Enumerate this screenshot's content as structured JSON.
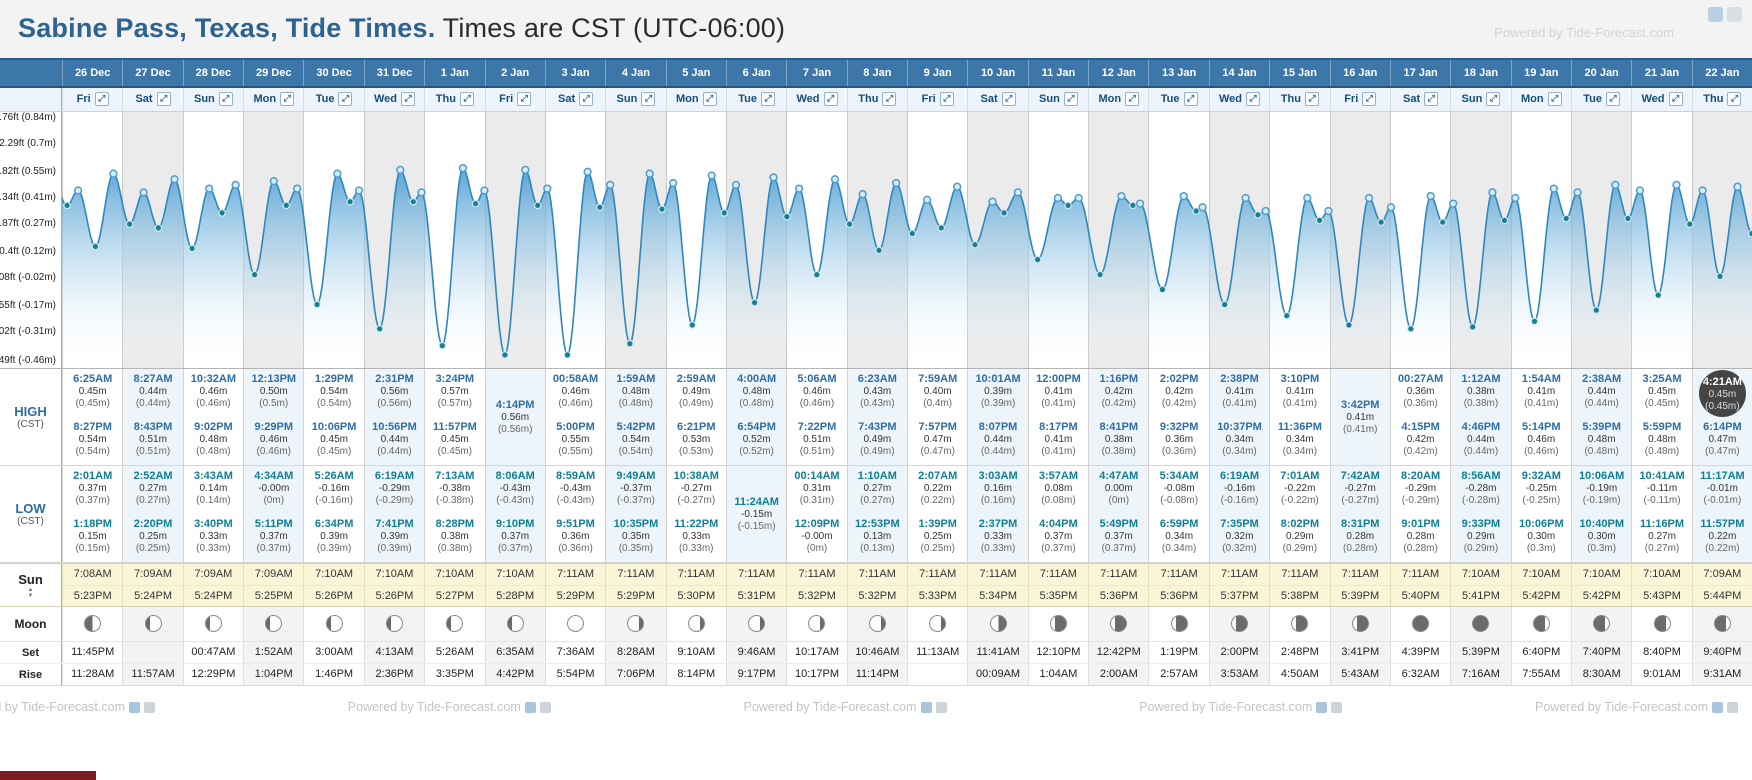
{
  "header": {
    "title_bold": "Sabine Pass, Texas, Tide Times.",
    "title_rest": " Times are CST (UTC-06:00)",
    "powered_by": "Powered by Tide-Forecast.com"
  },
  "row_labels": {
    "high": "HIGH",
    "high_unit": "(CST)",
    "low": "LOW",
    "low_unit": "(CST)",
    "sun": "Sun",
    "moon": "Moon",
    "moonset": "Set",
    "moonrise": "Rise"
  },
  "icons": {
    "expand": "⤢",
    "sun_up": "▲",
    "sun_down": "▼"
  },
  "colors": {
    "header_blue": "#3d76a8",
    "title_blue": "#2d6390",
    "high_time": "#2e6da4",
    "low_time": "#0e7f95",
    "sun_band": "#fbf5d8",
    "chart_line": "#3087bd"
  },
  "y_axis": [
    {
      "label": "2.76ft (0.84m)",
      "m": 0.84
    },
    {
      "label": "2.29ft (0.7m)",
      "m": 0.7
    },
    {
      "label": "1.82ft (0.55m)",
      "m": 0.55
    },
    {
      "label": "1.34ft (0.41m)",
      "m": 0.41
    },
    {
      "label": "0.87ft (0.27m)",
      "m": 0.27
    },
    {
      "label": "0.4ft (0.12m)",
      "m": 0.12
    },
    {
      "label": "-0.08ft (-0.02m)",
      "m": -0.02
    },
    {
      "label": "-0.55ft (-0.17m)",
      "m": -0.17
    },
    {
      "label": "-1.02ft (-0.31m)",
      "m": -0.31
    },
    {
      "label": "-1.49ft (-0.46m)",
      "m": -0.46
    }
  ],
  "chart_data": {
    "type": "area",
    "title": "Tide height curve",
    "unit": "m",
    "x_days": 28,
    "ylim_m": [
      -0.5,
      0.87
    ],
    "yticks": [
      "2.29ft (0.7m)",
      "1.82ft (0.55m)",
      "1.34ft (0.41m)",
      "0.87ft (0.27m)",
      "0.4ft (0.12m)",
      "-0.08ft (-0.02m)",
      "-0.55ft (-0.17m)",
      "-1.02ft (-0.31m)",
      "-1.49ft (-0.46m)"
    ],
    "series_note": "curve interpolates through every high/low tide event listed per day in days[].high and days[].low"
  },
  "footer": {
    "powered_by": "Powered by Tide-Forecast.com",
    "copies": 5
  },
  "days": [
    {
      "date": "26 Dec",
      "dow": "Fri",
      "high": [
        {
          "time": "6:25AM",
          "val": "0.45m",
          "alt": "(0.45m)"
        },
        {
          "time": "8:27PM",
          "val": "0.54m",
          "alt": "(0.54m)"
        }
      ],
      "low": [
        {
          "time": "2:01AM",
          "val": "0.37m",
          "alt": "(0.37m)"
        },
        {
          "time": "1:18PM",
          "val": "0.15m",
          "alt": "(0.15m)"
        }
      ],
      "sunrise": "7:08AM",
      "sunset": "5:23PM",
      "moon": "first-quarter",
      "set": "11:45PM",
      "rise": "11:28AM"
    },
    {
      "date": "27 Dec",
      "dow": "Sat",
      "high": [
        {
          "time": "8:27AM",
          "val": "0.44m",
          "alt": "(0.44m)"
        },
        {
          "time": "8:43PM",
          "val": "0.51m",
          "alt": "(0.51m)"
        }
      ],
      "low": [
        {
          "time": "2:52AM",
          "val": "0.27m",
          "alt": "(0.27m)"
        },
        {
          "time": "2:20PM",
          "val": "0.25m",
          "alt": "(0.25m)"
        }
      ],
      "sunrise": "7:09AM",
      "sunset": "5:24PM",
      "moon": "waxing-gibbous",
      "set": "",
      "rise": "11:57AM"
    },
    {
      "date": "28 Dec",
      "dow": "Sun",
      "high": [
        {
          "time": "10:32AM",
          "val": "0.46m",
          "alt": "(0.46m)"
        },
        {
          "time": "9:02PM",
          "val": "0.48m",
          "alt": "(0.48m)"
        }
      ],
      "low": [
        {
          "time": "3:43AM",
          "val": "0.14m",
          "alt": "(0.14m)"
        },
        {
          "time": "3:40PM",
          "val": "0.33m",
          "alt": "(0.33m)"
        }
      ],
      "sunrise": "7:09AM",
      "sunset": "5:24PM",
      "moon": "waxing-gibbous",
      "set": "00:47AM",
      "rise": "12:29PM"
    },
    {
      "date": "29 Dec",
      "dow": "Mon",
      "high": [
        {
          "time": "12:13PM",
          "val": "0.50m",
          "alt": "(0.5m)"
        },
        {
          "time": "9:29PM",
          "val": "0.46m",
          "alt": "(0.46m)"
        }
      ],
      "low": [
        {
          "time": "4:34AM",
          "val": "-0.00m",
          "alt": "(0m)"
        },
        {
          "time": "5:11PM",
          "val": "0.37m",
          "alt": "(0.37m)"
        }
      ],
      "sunrise": "7:09AM",
      "sunset": "5:25PM",
      "moon": "waxing-gibbous",
      "set": "1:52AM",
      "rise": "1:04PM"
    },
    {
      "date": "30 Dec",
      "dow": "Tue",
      "high": [
        {
          "time": "1:29PM",
          "val": "0.54m",
          "alt": "(0.54m)"
        },
        {
          "time": "10:06PM",
          "val": "0.45m",
          "alt": "(0.45m)"
        }
      ],
      "low": [
        {
          "time": "5:26AM",
          "val": "-0.16m",
          "alt": "(-0.16m)"
        },
        {
          "time": "6:34PM",
          "val": "0.39m",
          "alt": "(0.39m)"
        }
      ],
      "sunrise": "7:10AM",
      "sunset": "5:26PM",
      "moon": "waxing-gibbous",
      "set": "3:00AM",
      "rise": "1:46PM"
    },
    {
      "date": "31 Dec",
      "dow": "Wed",
      "high": [
        {
          "time": "2:31PM",
          "val": "0.56m",
          "alt": "(0.56m)"
        },
        {
          "time": "10:56PM",
          "val": "0.44m",
          "alt": "(0.44m)"
        }
      ],
      "low": [
        {
          "time": "6:19AM",
          "val": "-0.29m",
          "alt": "(-0.29m)"
        },
        {
          "time": "7:41PM",
          "val": "0.39m",
          "alt": "(0.39m)"
        }
      ],
      "sunrise": "7:10AM",
      "sunset": "5:26PM",
      "moon": "waxing-gibbous",
      "set": "4:13AM",
      "rise": "2:36PM"
    },
    {
      "date": "1 Jan",
      "dow": "Thu",
      "high": [
        {
          "time": "3:24PM",
          "val": "0.57m",
          "alt": "(0.57m)"
        },
        {
          "time": "11:57PM",
          "val": "0.45m",
          "alt": "(0.45m)"
        }
      ],
      "low": [
        {
          "time": "7:13AM",
          "val": "-0.38m",
          "alt": "(-0.38m)"
        },
        {
          "time": "8:28PM",
          "val": "0.38m",
          "alt": "(0.38m)"
        }
      ],
      "sunrise": "7:10AM",
      "sunset": "5:27PM",
      "moon": "waxing-gibbous",
      "set": "5:26AM",
      "rise": "3:35PM"
    },
    {
      "date": "2 Jan",
      "dow": "Fri",
      "high": [
        {
          "time": "4:14PM",
          "val": "0.56m",
          "alt": "(0.56m)"
        }
      ],
      "low": [
        {
          "time": "8:06AM",
          "val": "-0.43m",
          "alt": "(-0.43m)"
        },
        {
          "time": "9:10PM",
          "val": "0.37m",
          "alt": "(0.37m)"
        }
      ],
      "sunrise": "7:10AM",
      "sunset": "5:28PM",
      "moon": "waxing-gibbous",
      "set": "6:35AM",
      "rise": "4:42PM"
    },
    {
      "date": "3 Jan",
      "dow": "Sat",
      "high": [
        {
          "time": "00:58AM",
          "val": "0.46m",
          "alt": "(0.46m)"
        },
        {
          "time": "5:00PM",
          "val": "0.55m",
          "alt": "(0.55m)"
        }
      ],
      "low": [
        {
          "time": "8:59AM",
          "val": "-0.43m",
          "alt": "(-0.43m)"
        },
        {
          "time": "9:51PM",
          "val": "0.36m",
          "alt": "(0.36m)"
        }
      ],
      "sunrise": "7:11AM",
      "sunset": "5:29PM",
      "moon": "full",
      "set": "7:36AM",
      "rise": "5:54PM"
    },
    {
      "date": "4 Jan",
      "dow": "Sun",
      "high": [
        {
          "time": "1:59AM",
          "val": "0.48m",
          "alt": "(0.48m)"
        },
        {
          "time": "5:42PM",
          "val": "0.54m",
          "alt": "(0.54m)"
        }
      ],
      "low": [
        {
          "time": "9:49AM",
          "val": "-0.37m",
          "alt": "(-0.37m)"
        },
        {
          "time": "10:35PM",
          "val": "0.35m",
          "alt": "(0.35m)"
        }
      ],
      "sunrise": "7:11AM",
      "sunset": "5:29PM",
      "moon": "waning-gibbous",
      "set": "8:28AM",
      "rise": "7:06PM"
    },
    {
      "date": "5 Jan",
      "dow": "Mon",
      "high": [
        {
          "time": "2:59AM",
          "val": "0.49m",
          "alt": "(0.49m)"
        },
        {
          "time": "6:21PM",
          "val": "0.53m",
          "alt": "(0.53m)"
        }
      ],
      "low": [
        {
          "time": "10:38AM",
          "val": "-0.27m",
          "alt": "(-0.27m)"
        },
        {
          "time": "11:22PM",
          "val": "0.33m",
          "alt": "(0.33m)"
        }
      ],
      "sunrise": "7:11AM",
      "sunset": "5:30PM",
      "moon": "waning-gibbous",
      "set": "9:10AM",
      "rise": "8:14PM"
    },
    {
      "date": "6 Jan",
      "dow": "Tue",
      "high": [
        {
          "time": "4:00AM",
          "val": "0.48m",
          "alt": "(0.48m)"
        },
        {
          "time": "6:54PM",
          "val": "0.52m",
          "alt": "(0.52m)"
        }
      ],
      "low": [
        {
          "time": "11:24AM",
          "val": "-0.15m",
          "alt": "(-0.15m)"
        }
      ],
      "sunrise": "7:11AM",
      "sunset": "5:31PM",
      "moon": "waning-gibbous",
      "set": "9:46AM",
      "rise": "9:17PM"
    },
    {
      "date": "7 Jan",
      "dow": "Wed",
      "high": [
        {
          "time": "5:06AM",
          "val": "0.46m",
          "alt": "(0.46m)"
        },
        {
          "time": "7:22PM",
          "val": "0.51m",
          "alt": "(0.51m)"
        }
      ],
      "low": [
        {
          "time": "00:14AM",
          "val": "0.31m",
          "alt": "(0.31m)"
        },
        {
          "time": "12:09PM",
          "val": "-0.00m",
          "alt": "(0m)"
        }
      ],
      "sunrise": "7:11AM",
      "sunset": "5:32PM",
      "moon": "waning-gibbous",
      "set": "10:17AM",
      "rise": "10:17PM"
    },
    {
      "date": "8 Jan",
      "dow": "Thu",
      "high": [
        {
          "time": "6:23AM",
          "val": "0.43m",
          "alt": "(0.43m)"
        },
        {
          "time": "7:43PM",
          "val": "0.49m",
          "alt": "(0.49m)"
        }
      ],
      "low": [
        {
          "time": "1:10AM",
          "val": "0.27m",
          "alt": "(0.27m)"
        },
        {
          "time": "12:53PM",
          "val": "0.13m",
          "alt": "(0.13m)"
        }
      ],
      "sunrise": "7:11AM",
      "sunset": "5:32PM",
      "moon": "waning-gibbous",
      "set": "10:46AM",
      "rise": "11:14PM"
    },
    {
      "date": "9 Jan",
      "dow": "Fri",
      "high": [
        {
          "time": "7:59AM",
          "val": "0.40m",
          "alt": "(0.4m)"
        },
        {
          "time": "7:57PM",
          "val": "0.47m",
          "alt": "(0.47m)"
        }
      ],
      "low": [
        {
          "time": "2:07AM",
          "val": "0.22m",
          "alt": "(0.22m)"
        },
        {
          "time": "1:39PM",
          "val": "0.25m",
          "alt": "(0.25m)"
        }
      ],
      "sunrise": "7:11AM",
      "sunset": "5:33PM",
      "moon": "waning-gibbous",
      "set": "11:13AM",
      "rise": ""
    },
    {
      "date": "10 Jan",
      "dow": "Sat",
      "high": [
        {
          "time": "10:01AM",
          "val": "0.39m",
          "alt": "(0.39m)"
        },
        {
          "time": "8:07PM",
          "val": "0.44m",
          "alt": "(0.44m)"
        }
      ],
      "low": [
        {
          "time": "3:03AM",
          "val": "0.16m",
          "alt": "(0.16m)"
        },
        {
          "time": "2:37PM",
          "val": "0.33m",
          "alt": "(0.33m)"
        }
      ],
      "sunrise": "7:11AM",
      "sunset": "5:34PM",
      "moon": "last-quarter",
      "set": "11:41AM",
      "rise": "00:09AM"
    },
    {
      "date": "11 Jan",
      "dow": "Sun",
      "high": [
        {
          "time": "12:00PM",
          "val": "0.41m",
          "alt": "(0.41m)"
        },
        {
          "time": "8:17PM",
          "val": "0.41m",
          "alt": "(0.41m)"
        }
      ],
      "low": [
        {
          "time": "3:57AM",
          "val": "0.08m",
          "alt": "(0.08m)"
        },
        {
          "time": "4:04PM",
          "val": "0.37m",
          "alt": "(0.37m)"
        }
      ],
      "sunrise": "7:11AM",
      "sunset": "5:35PM",
      "moon": "waning-crescent",
      "set": "12:10PM",
      "rise": "1:04AM"
    },
    {
      "date": "12 Jan",
      "dow": "Mon",
      "high": [
        {
          "time": "1:16PM",
          "val": "0.42m",
          "alt": "(0.42m)"
        },
        {
          "time": "8:41PM",
          "val": "0.38m",
          "alt": "(0.38m)"
        }
      ],
      "low": [
        {
          "time": "4:47AM",
          "val": "0.00m",
          "alt": "(0m)"
        },
        {
          "time": "5:49PM",
          "val": "0.37m",
          "alt": "(0.37m)"
        }
      ],
      "sunrise": "7:11AM",
      "sunset": "5:36PM",
      "moon": "waning-crescent",
      "set": "12:42PM",
      "rise": "2:00AM"
    },
    {
      "date": "13 Jan",
      "dow": "Tue",
      "high": [
        {
          "time": "2:02PM",
          "val": "0.42m",
          "alt": "(0.42m)"
        },
        {
          "time": "9:32PM",
          "val": "0.36m",
          "alt": "(0.36m)"
        }
      ],
      "low": [
        {
          "time": "5:34AM",
          "val": "-0.08m",
          "alt": "(-0.08m)"
        },
        {
          "time": "6:59PM",
          "val": "0.34m",
          "alt": "(0.34m)"
        }
      ],
      "sunrise": "7:11AM",
      "sunset": "5:36PM",
      "moon": "waning-crescent",
      "set": "1:19PM",
      "rise": "2:57AM"
    },
    {
      "date": "14 Jan",
      "dow": "Wed",
      "high": [
        {
          "time": "2:38PM",
          "val": "0.41m",
          "alt": "(0.41m)"
        },
        {
          "time": "10:37PM",
          "val": "0.34m",
          "alt": "(0.34m)"
        }
      ],
      "low": [
        {
          "time": "6:19AM",
          "val": "-0.16m",
          "alt": "(-0.16m)"
        },
        {
          "time": "7:35PM",
          "val": "0.32m",
          "alt": "(0.32m)"
        }
      ],
      "sunrise": "7:11AM",
      "sunset": "5:37PM",
      "moon": "waning-crescent",
      "set": "2:00PM",
      "rise": "3:53AM"
    },
    {
      "date": "15 Jan",
      "dow": "Thu",
      "high": [
        {
          "time": "3:10PM",
          "val": "0.41m",
          "alt": "(0.41m)"
        },
        {
          "time": "11:36PM",
          "val": "0.34m",
          "alt": "(0.34m)"
        }
      ],
      "low": [
        {
          "time": "7:01AM",
          "val": "-0.22m",
          "alt": "(-0.22m)"
        },
        {
          "time": "8:02PM",
          "val": "0.29m",
          "alt": "(0.29m)"
        }
      ],
      "sunrise": "7:11AM",
      "sunset": "5:38PM",
      "moon": "waning-crescent",
      "set": "2:48PM",
      "rise": "4:50AM"
    },
    {
      "date": "16 Jan",
      "dow": "Fri",
      "high": [
        {
          "time": "3:42PM",
          "val": "0.41m",
          "alt": "(0.41m)"
        }
      ],
      "low": [
        {
          "time": "7:42AM",
          "val": "-0.27m",
          "alt": "(-0.27m)"
        },
        {
          "time": "8:31PM",
          "val": "0.28m",
          "alt": "(0.28m)"
        }
      ],
      "sunrise": "7:11AM",
      "sunset": "5:39PM",
      "moon": "waning-crescent",
      "set": "3:41PM",
      "rise": "5:43AM"
    },
    {
      "date": "17 Jan",
      "dow": "Sat",
      "high": [
        {
          "time": "00:27AM",
          "val": "0.36m",
          "alt": "(0.36m)"
        },
        {
          "time": "4:15PM",
          "val": "0.42m",
          "alt": "(0.42m)"
        }
      ],
      "low": [
        {
          "time": "8:20AM",
          "val": "-0.29m",
          "alt": "(-0.29m)"
        },
        {
          "time": "9:01PM",
          "val": "0.28m",
          "alt": "(0.28m)"
        }
      ],
      "sunrise": "7:11AM",
      "sunset": "5:40PM",
      "moon": "new",
      "set": "4:39PM",
      "rise": "6:32AM"
    },
    {
      "date": "18 Jan",
      "dow": "Sun",
      "high": [
        {
          "time": "1:12AM",
          "val": "0.38m",
          "alt": "(0.38m)"
        },
        {
          "time": "4:46PM",
          "val": "0.44m",
          "alt": "(0.44m)"
        }
      ],
      "low": [
        {
          "time": "8:56AM",
          "val": "-0.28m",
          "alt": "(-0.28m)"
        },
        {
          "time": "9:33PM",
          "val": "0.29m",
          "alt": "(0.29m)"
        }
      ],
      "sunrise": "7:10AM",
      "sunset": "5:41PM",
      "moon": "new",
      "set": "5:39PM",
      "rise": "7:16AM"
    },
    {
      "date": "19 Jan",
      "dow": "Mon",
      "high": [
        {
          "time": "1:54AM",
          "val": "0.41m",
          "alt": "(0.41m)"
        },
        {
          "time": "5:14PM",
          "val": "0.46m",
          "alt": "(0.46m)"
        }
      ],
      "low": [
        {
          "time": "9:32AM",
          "val": "-0.25m",
          "alt": "(-0.25m)"
        },
        {
          "time": "10:06PM",
          "val": "0.30m",
          "alt": "(0.3m)"
        }
      ],
      "sunrise": "7:10AM",
      "sunset": "5:42PM",
      "moon": "waxing-crescent",
      "set": "6:40PM",
      "rise": "7:55AM"
    },
    {
      "date": "20 Jan",
      "dow": "Tue",
      "high": [
        {
          "time": "2:38AM",
          "val": "0.44m",
          "alt": "(0.44m)"
        },
        {
          "time": "5:39PM",
          "val": "0.48m",
          "alt": "(0.48m)"
        }
      ],
      "low": [
        {
          "time": "10:06AM",
          "val": "-0.19m",
          "alt": "(-0.19m)"
        },
        {
          "time": "10:40PM",
          "val": "0.30m",
          "alt": "(0.3m)"
        }
      ],
      "sunrise": "7:10AM",
      "sunset": "5:42PM",
      "moon": "waxing-crescent",
      "set": "7:40PM",
      "rise": "8:30AM"
    },
    {
      "date": "21 Jan",
      "dow": "Wed",
      "high": [
        {
          "time": "3:25AM",
          "val": "0.45m",
          "alt": "(0.45m)"
        },
        {
          "time": "5:59PM",
          "val": "0.48m",
          "alt": "(0.48m)"
        }
      ],
      "low": [
        {
          "time": "10:41AM",
          "val": "-0.11m",
          "alt": "(-0.11m)"
        },
        {
          "time": "11:16PM",
          "val": "0.27m",
          "alt": "(0.27m)"
        }
      ],
      "sunrise": "7:10AM",
      "sunset": "5:43PM",
      "moon": "waxing-crescent",
      "set": "8:40PM",
      "rise": "9:01AM"
    },
    {
      "date": "22 Jan",
      "dow": "Thu",
      "high": [
        {
          "time": "4:21AM",
          "val": "0.45m",
          "alt": "(0.45m)",
          "highlight": true
        },
        {
          "time": "6:14PM",
          "val": "0.47m",
          "alt": "(0.47m)"
        }
      ],
      "low": [
        {
          "time": "11:17AM",
          "val": "-0.01m",
          "alt": "(-0.01m)"
        },
        {
          "time": "11:57PM",
          "val": "0.22m",
          "alt": "(0.22m)"
        }
      ],
      "sunrise": "7:09AM",
      "sunset": "5:44PM",
      "moon": "waxing-crescent",
      "set": "9:40PM",
      "rise": "9:31AM"
    }
  ]
}
